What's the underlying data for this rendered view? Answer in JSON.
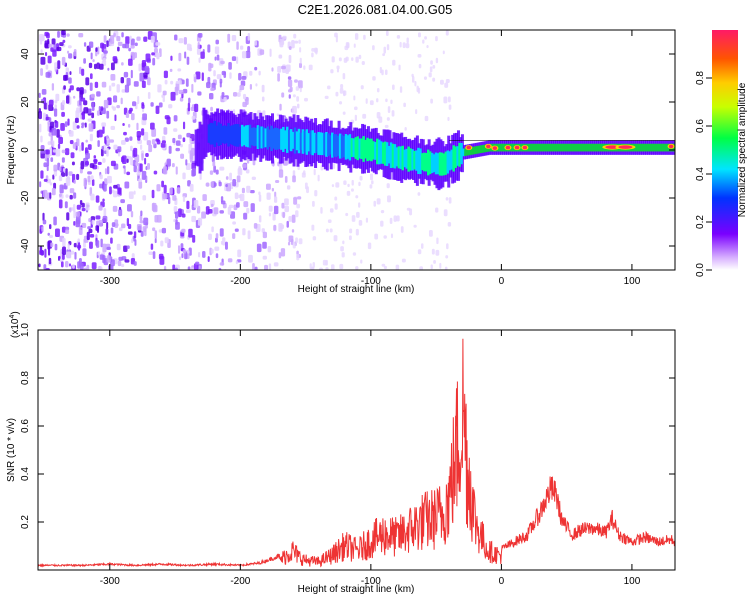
{
  "title": "C2E1.2026.081.04.00.G05",
  "colors": {
    "snr_line": "#ee3333",
    "spectrogram_low": "#dcc8ff",
    "spectrogram_mid": "#6a00ff",
    "band_peak": "#ff2a55"
  },
  "chart_data": [
    {
      "type": "heatmap",
      "title": "",
      "xlabel": "Height of straight line (km)",
      "ylabel": "Frequency (Hz)",
      "xlim": [
        -355,
        133
      ],
      "ylim": [
        -50,
        50
      ],
      "xticks": [
        -300,
        -200,
        -100,
        0,
        100
      ],
      "yticks": [
        -40,
        -20,
        0,
        20,
        40
      ],
      "colorbar": {
        "label": "Normalized spectral amplitude",
        "range": [
          0.0,
          1.0
        ],
        "ticks": [
          "0.0",
          "0.2",
          "0.4",
          "0.6",
          "0.8"
        ],
        "colormap": "rainbow (white/violet to red)"
      },
      "signal_band_center_hz": [
        {
          "x": -230,
          "y": 7
        },
        {
          "x": -200,
          "y": 6
        },
        {
          "x": -160,
          "y": 4
        },
        {
          "x": -130,
          "y": 2
        },
        {
          "x": -100,
          "y": 0
        },
        {
          "x": -80,
          "y": -3
        },
        {
          "x": -60,
          "y": -5
        },
        {
          "x": -45,
          "y": -6
        },
        {
          "x": -30,
          "y": -1
        },
        {
          "x": -10,
          "y": 1
        },
        {
          "x": 0,
          "y": 1
        },
        {
          "x": 50,
          "y": 1
        },
        {
          "x": 100,
          "y": 1
        },
        {
          "x": 133,
          "y": 1
        }
      ]
    },
    {
      "type": "line",
      "title": "",
      "xlabel": "Height of straight line (km)",
      "ylabel": "SNR (10 * v/v)",
      "y_scale_note": "(x10^4)",
      "y_scale_base": "(x10",
      "y_scale_exp": "4",
      "xlim": [
        -355,
        133
      ],
      "ylim": [
        0,
        1.0
      ],
      "xticks": [
        -300,
        -200,
        -100,
        0,
        100
      ],
      "yticks": [
        0.2,
        0.4,
        0.6,
        0.8,
        1.0
      ],
      "series": [
        {
          "x": [
            -355,
            -340,
            -320,
            -300,
            -280,
            -260,
            -240,
            -220,
            -200,
            -185,
            -170,
            -160,
            -155,
            -150,
            -140,
            -130,
            -120,
            -110,
            -100,
            -90,
            -80,
            -70,
            -60,
            -50,
            -45,
            -40,
            -35,
            -32,
            -30,
            -28,
            -26,
            -24,
            -22,
            -20,
            -15,
            -10,
            -5,
            0,
            10,
            20,
            30,
            38,
            42,
            46,
            50,
            55,
            60,
            70,
            80,
            85,
            90,
            100,
            110,
            120,
            130,
            133
          ],
          "y": [
            0.02,
            0.02,
            0.02,
            0.025,
            0.02,
            0.025,
            0.02,
            0.025,
            0.02,
            0.03,
            0.06,
            0.12,
            0.08,
            0.06,
            0.05,
            0.09,
            0.15,
            0.12,
            0.18,
            0.22,
            0.2,
            0.25,
            0.3,
            0.32,
            0.35,
            0.45,
            0.7,
            0.85,
            1.0,
            0.9,
            0.6,
            0.55,
            0.4,
            0.3,
            0.2,
            0.12,
            0.1,
            0.09,
            0.12,
            0.15,
            0.25,
            0.35,
            0.32,
            0.22,
            0.18,
            0.15,
            0.17,
            0.18,
            0.16,
            0.22,
            0.15,
            0.12,
            0.14,
            0.12,
            0.13,
            0.12
          ]
        }
      ]
    }
  ]
}
